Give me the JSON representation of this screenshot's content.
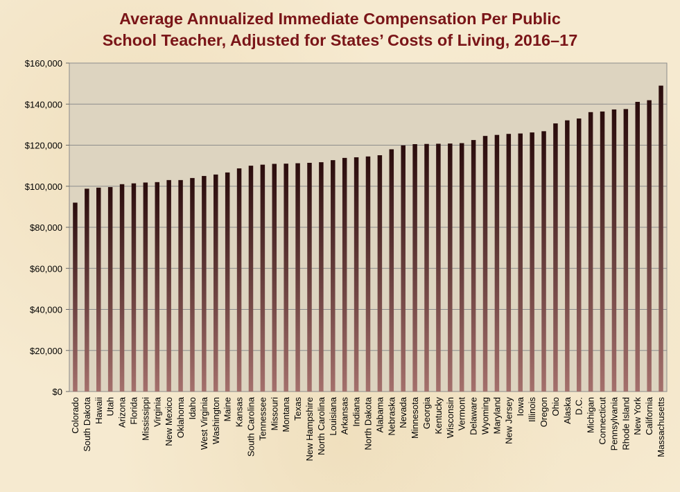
{
  "title_line1": "Average Annualized Immediate Compensation Per Public",
  "title_line2": "School Teacher, Adjusted for States’ Costs of Living, 2016–17",
  "colors": {
    "bar_top": "#2a0c0c",
    "bar_bottom": "#a4706c",
    "plot_background": "#ddd4c0",
    "title": "#7a1518"
  },
  "chart_data": {
    "type": "bar",
    "title": "Average Annualized Immediate Compensation Per Public School Teacher, Adjusted for States’ Costs of Living, 2016–17",
    "xlabel": "",
    "ylabel": "",
    "ylim": [
      0,
      160000
    ],
    "yticks": [
      0,
      20000,
      40000,
      60000,
      80000,
      100000,
      120000,
      140000,
      160000
    ],
    "ytick_labels": [
      "$0",
      "$20,000",
      "$40,000",
      "$60,000",
      "$80,000",
      "$100,000",
      "$120,000",
      "$140,000",
      "$160,000"
    ],
    "grid": "horizontal",
    "legend": "none",
    "categories": [
      "Colorado",
      "South Dakota",
      "Hawaii",
      "Utah",
      "Arizona",
      "Florida",
      "Mississippi",
      "Virginia",
      "New Mexico",
      "Oklahoma",
      "Idaho",
      "West Virginia",
      "Washington",
      "Maine",
      "Kansas",
      "South Carolina",
      "Tennessee",
      "Missouri",
      "Montana",
      "Texas",
      "New Hampshire",
      "North Carolina",
      "Louisiana",
      "Arkansas",
      "Indiana",
      "North Dakota",
      "Alabama",
      "Nebraska",
      "Nevada",
      "Minnesota",
      "Georgia",
      "Kentucky",
      "Wisconsin",
      "Vermont",
      "Delaware",
      "Wyoming",
      "Maryland",
      "New Jersey",
      "Iowa",
      "Illinois",
      "Oregon",
      "Ohio",
      "Alaska",
      "D.C.",
      "Michigan",
      "Connecticut",
      "Pennsylvania",
      "Rhode Island",
      "New York",
      "California",
      "Massachusetts"
    ],
    "values": [
      92000,
      98800,
      99300,
      99600,
      101000,
      101400,
      101800,
      102000,
      103000,
      103000,
      104000,
      105000,
      105700,
      106700,
      108700,
      110000,
      110500,
      110900,
      111000,
      111200,
      111400,
      111700,
      112700,
      113800,
      114100,
      114500,
      115100,
      118000,
      119900,
      120500,
      120600,
      120700,
      120800,
      121000,
      122500,
      124500,
      125000,
      125500,
      125700,
      126200,
      126800,
      130600,
      132100,
      133000,
      136100,
      136400,
      137400,
      137600,
      141100,
      141900,
      149000
    ]
  }
}
